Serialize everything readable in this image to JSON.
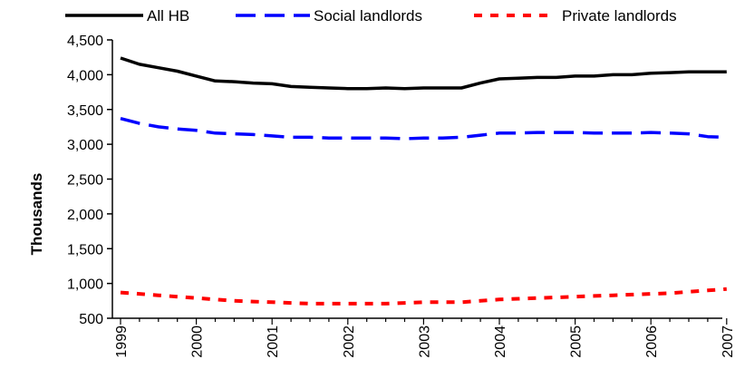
{
  "chart_data": {
    "type": "line",
    "title": "",
    "xlabel": "",
    "ylabel": "Thousands",
    "ylim": [
      500,
      4500
    ],
    "y_ticks": [
      500,
      1000,
      1500,
      2000,
      2500,
      3000,
      3500,
      4000,
      4500
    ],
    "y_tick_labels": [
      "500",
      "1,000",
      "1,500",
      "2,000",
      "2,500",
      "3,000",
      "3,500",
      "4,000",
      "4,500"
    ],
    "x_tick_labels": [
      "1999",
      "2000",
      "2001",
      "2002",
      "2003",
      "2004",
      "2005",
      "2006",
      "2007"
    ],
    "x_tick_label_orientation": "rotated-vertical",
    "grid": false,
    "legend_position": "top",
    "points_per_year": 4,
    "series": [
      {
        "name": "All HB",
        "color": "#000000",
        "dash": "solid",
        "values": [
          4240,
          4150,
          4100,
          4050,
          3980,
          3910,
          3900,
          3880,
          3870,
          3830,
          3820,
          3810,
          3800,
          3800,
          3810,
          3800,
          3810,
          3810,
          3810,
          3880,
          3940,
          3950,
          3960,
          3960,
          3980,
          3980,
          4000,
          4000,
          4020,
          4030,
          4040,
          4040,
          4040
        ]
      },
      {
        "name": "Social landlords",
        "color": "#0000ff",
        "dash": "long-dash",
        "values": [
          3370,
          3300,
          3250,
          3220,
          3200,
          3160,
          3150,
          3140,
          3120,
          3100,
          3100,
          3090,
          3090,
          3090,
          3090,
          3080,
          3090,
          3090,
          3100,
          3130,
          3160,
          3160,
          3170,
          3170,
          3170,
          3160,
          3160,
          3160,
          3170,
          3160,
          3150,
          3110,
          3100
        ]
      },
      {
        "name": "Private landlords",
        "color": "#ff0000",
        "dash": "short-dash",
        "values": [
          870,
          850,
          830,
          810,
          790,
          770,
          750,
          740,
          730,
          720,
          710,
          710,
          710,
          710,
          710,
          720,
          730,
          730,
          730,
          750,
          770,
          780,
          790,
          800,
          810,
          820,
          830,
          840,
          850,
          860,
          880,
          900,
          920
        ]
      }
    ]
  }
}
